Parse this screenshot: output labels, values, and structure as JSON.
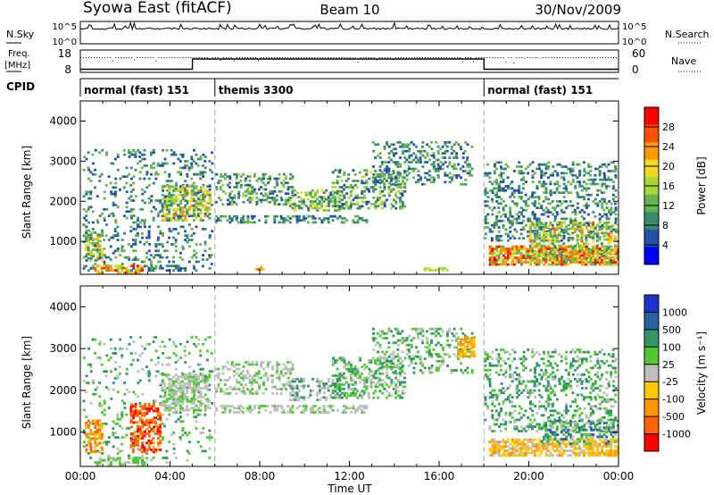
{
  "header": {
    "station": "Syowa East (fitACF)",
    "beam": "Beam 10",
    "date": "30/Nov/2009"
  },
  "noise_panel": {
    "left_label": "N.Sky",
    "right_label": "N.Search",
    "tick_high": "10^5",
    "tick_low": "10^0"
  },
  "freq_panel": {
    "left_label_top": "Freq.",
    "left_label_bottom": "[MHz]",
    "right_label": "Nave",
    "left_ticks": [
      "18",
      "8"
    ],
    "right_ticks": [
      "60",
      "0"
    ],
    "freq_steps": [
      {
        "start": 0,
        "end": 5,
        "level": 0.86
      },
      {
        "start": 5,
        "end": 18,
        "level": 0.4
      },
      {
        "start": 18,
        "end": 24,
        "level": 0.86
      }
    ]
  },
  "cpid": {
    "label": "CPID",
    "segments": [
      {
        "start": 0,
        "end": 6,
        "name": "normal (fast) 151"
      },
      {
        "start": 6,
        "end": 18,
        "name": "themis 3300"
      },
      {
        "start": 18,
        "end": 24,
        "name": "normal (fast) 151"
      }
    ]
  },
  "colors": {
    "power": [
      "#0000ff",
      "#2050a8",
      "#3a8a6a",
      "#64b450",
      "#a8d838",
      "#f0d820",
      "#ff9a00",
      "#ff5000",
      "#ff0000"
    ],
    "velocity": [
      "#ff0000",
      "#ff6400",
      "#ff9600",
      "#ffc800",
      "#bebebe",
      "#50c832",
      "#329664",
      "#2860a0",
      "#1e32c8"
    ],
    "ground_scatter": "#bebebe"
  },
  "chart_data": [
    {
      "type": "heatmap",
      "variable": "power",
      "ylabel": "Slant Range [km]",
      "xlabel": "",
      "xlim": [
        0,
        24
      ],
      "ylim": [
        180,
        4500
      ],
      "yticks": [
        "1000",
        "2000",
        "3000",
        "4000"
      ],
      "colorbar": {
        "label": "Power [dB]",
        "ticks": [
          "4",
          "8",
          "12",
          "16",
          "20",
          "24",
          "28"
        ],
        "range": [
          0,
          32
        ]
      },
      "regions": [
        {
          "t0": 0.1,
          "t1": 5.9,
          "r0": 250,
          "r1": 3300,
          "min": 4,
          "max": 14,
          "density": 0.18
        },
        {
          "t0": 0.2,
          "t1": 1.0,
          "r0": 500,
          "r1": 1300,
          "min": 6,
          "max": 22,
          "density": 0.55
        },
        {
          "t0": 0.6,
          "t1": 2.8,
          "r0": 200,
          "r1": 420,
          "min": 14,
          "max": 30,
          "density": 0.6
        },
        {
          "t0": 3.0,
          "t1": 4.7,
          "r0": 250,
          "r1": 420,
          "min": 4,
          "max": 10,
          "density": 0.5
        },
        {
          "t0": 3.6,
          "t1": 5.8,
          "r0": 1500,
          "r1": 2400,
          "min": 6,
          "max": 24,
          "density": 0.55
        },
        {
          "t0": 6.0,
          "t1": 12.8,
          "r0": 1450,
          "r1": 1650,
          "min": 4,
          "max": 14,
          "density": 0.45
        },
        {
          "t0": 6.0,
          "t1": 9.5,
          "r0": 1900,
          "r1": 2700,
          "min": 4,
          "max": 16,
          "density": 0.35
        },
        {
          "t0": 9.3,
          "t1": 11.6,
          "r0": 1750,
          "r1": 2300,
          "min": 6,
          "max": 20,
          "density": 0.45
        },
        {
          "t0": 11.2,
          "t1": 14.5,
          "r0": 1800,
          "r1": 2800,
          "min": 4,
          "max": 18,
          "density": 0.4
        },
        {
          "t0": 13.0,
          "t1": 17.5,
          "r0": 2400,
          "r1": 3500,
          "min": 4,
          "max": 14,
          "density": 0.3
        },
        {
          "t0": 7.8,
          "t1": 8.2,
          "r0": 280,
          "r1": 380,
          "min": 20,
          "max": 28,
          "density": 0.8
        },
        {
          "t0": 15.3,
          "t1": 16.4,
          "r0": 260,
          "r1": 350,
          "min": 14,
          "max": 20,
          "density": 0.7
        },
        {
          "t0": 18.0,
          "t1": 23.9,
          "r0": 1000,
          "r1": 3000,
          "min": 4,
          "max": 14,
          "density": 0.3
        },
        {
          "t0": 18.2,
          "t1": 24.0,
          "r0": 400,
          "r1": 900,
          "min": 10,
          "max": 32,
          "density": 0.75
        },
        {
          "t0": 20.0,
          "t1": 24.0,
          "r0": 500,
          "r1": 1500,
          "min": 8,
          "max": 26,
          "density": 0.45
        }
      ]
    },
    {
      "type": "heatmap",
      "variable": "velocity",
      "ylabel": "Slant Range [km]",
      "xlabel": "Time UT",
      "xlim": [
        0,
        24
      ],
      "ylim": [
        180,
        4500
      ],
      "xticks": [
        "00:00",
        "04:00",
        "08:00",
        "12:00",
        "16:00",
        "20:00",
        "00:00"
      ],
      "yticks": [
        "1000",
        "2000",
        "3000",
        "4000"
      ],
      "colorbar": {
        "label": "Velocity [m s⁻¹]",
        "ticks": [
          "1000",
          "500",
          "100",
          "25",
          "-25",
          "-100",
          "-500",
          "-1000"
        ]
      },
      "regions": [
        {
          "t0": 0.1,
          "t1": 5.9,
          "r0": 250,
          "r1": 3300,
          "classes": [
            5,
            6,
            4
          ],
          "density": 0.12
        },
        {
          "t0": 0.2,
          "t1": 1.0,
          "r0": 500,
          "r1": 1300,
          "classes": [
            1,
            2,
            2,
            3
          ],
          "density": 0.55
        },
        {
          "t0": 2.2,
          "t1": 3.6,
          "r0": 500,
          "r1": 1700,
          "classes": [
            0,
            1,
            1,
            2
          ],
          "density": 0.55
        },
        {
          "t0": 0.6,
          "t1": 3.0,
          "r0": 200,
          "r1": 400,
          "classes": [
            5,
            4,
            5
          ],
          "density": 0.4
        },
        {
          "t0": 3.6,
          "t1": 5.8,
          "r0": 1500,
          "r1": 2400,
          "classes": [
            4,
            4,
            5
          ],
          "density": 0.55
        },
        {
          "t0": 6.0,
          "t1": 12.8,
          "r0": 1450,
          "r1": 1650,
          "classes": [
            4,
            4,
            5
          ],
          "density": 0.45
        },
        {
          "t0": 6.0,
          "t1": 9.5,
          "r0": 1900,
          "r1": 2700,
          "classes": [
            4,
            4,
            5
          ],
          "density": 0.35
        },
        {
          "t0": 9.3,
          "t1": 11.6,
          "r0": 1750,
          "r1": 2300,
          "classes": [
            4,
            4,
            6
          ],
          "density": 0.45
        },
        {
          "t0": 11.2,
          "t1": 14.5,
          "r0": 1800,
          "r1": 2800,
          "classes": [
            4,
            5,
            6
          ],
          "density": 0.4
        },
        {
          "t0": 13.0,
          "t1": 17.5,
          "r0": 2400,
          "r1": 3500,
          "classes": [
            5,
            6,
            4
          ],
          "density": 0.3
        },
        {
          "t0": 16.8,
          "t1": 17.6,
          "r0": 2800,
          "r1": 3300,
          "classes": [
            2,
            3
          ],
          "density": 0.6
        },
        {
          "t0": 18.0,
          "t1": 23.9,
          "r0": 1000,
          "r1": 3000,
          "classes": [
            5,
            6,
            6,
            4
          ],
          "density": 0.3
        },
        {
          "t0": 18.2,
          "t1": 24.0,
          "r0": 420,
          "r1": 850,
          "classes": [
            3,
            3,
            2,
            4
          ],
          "density": 0.75
        },
        {
          "t0": 20.5,
          "t1": 24.0,
          "r0": 700,
          "r1": 1300,
          "classes": [
            6,
            7,
            4,
            5
          ],
          "density": 0.45
        }
      ]
    }
  ]
}
